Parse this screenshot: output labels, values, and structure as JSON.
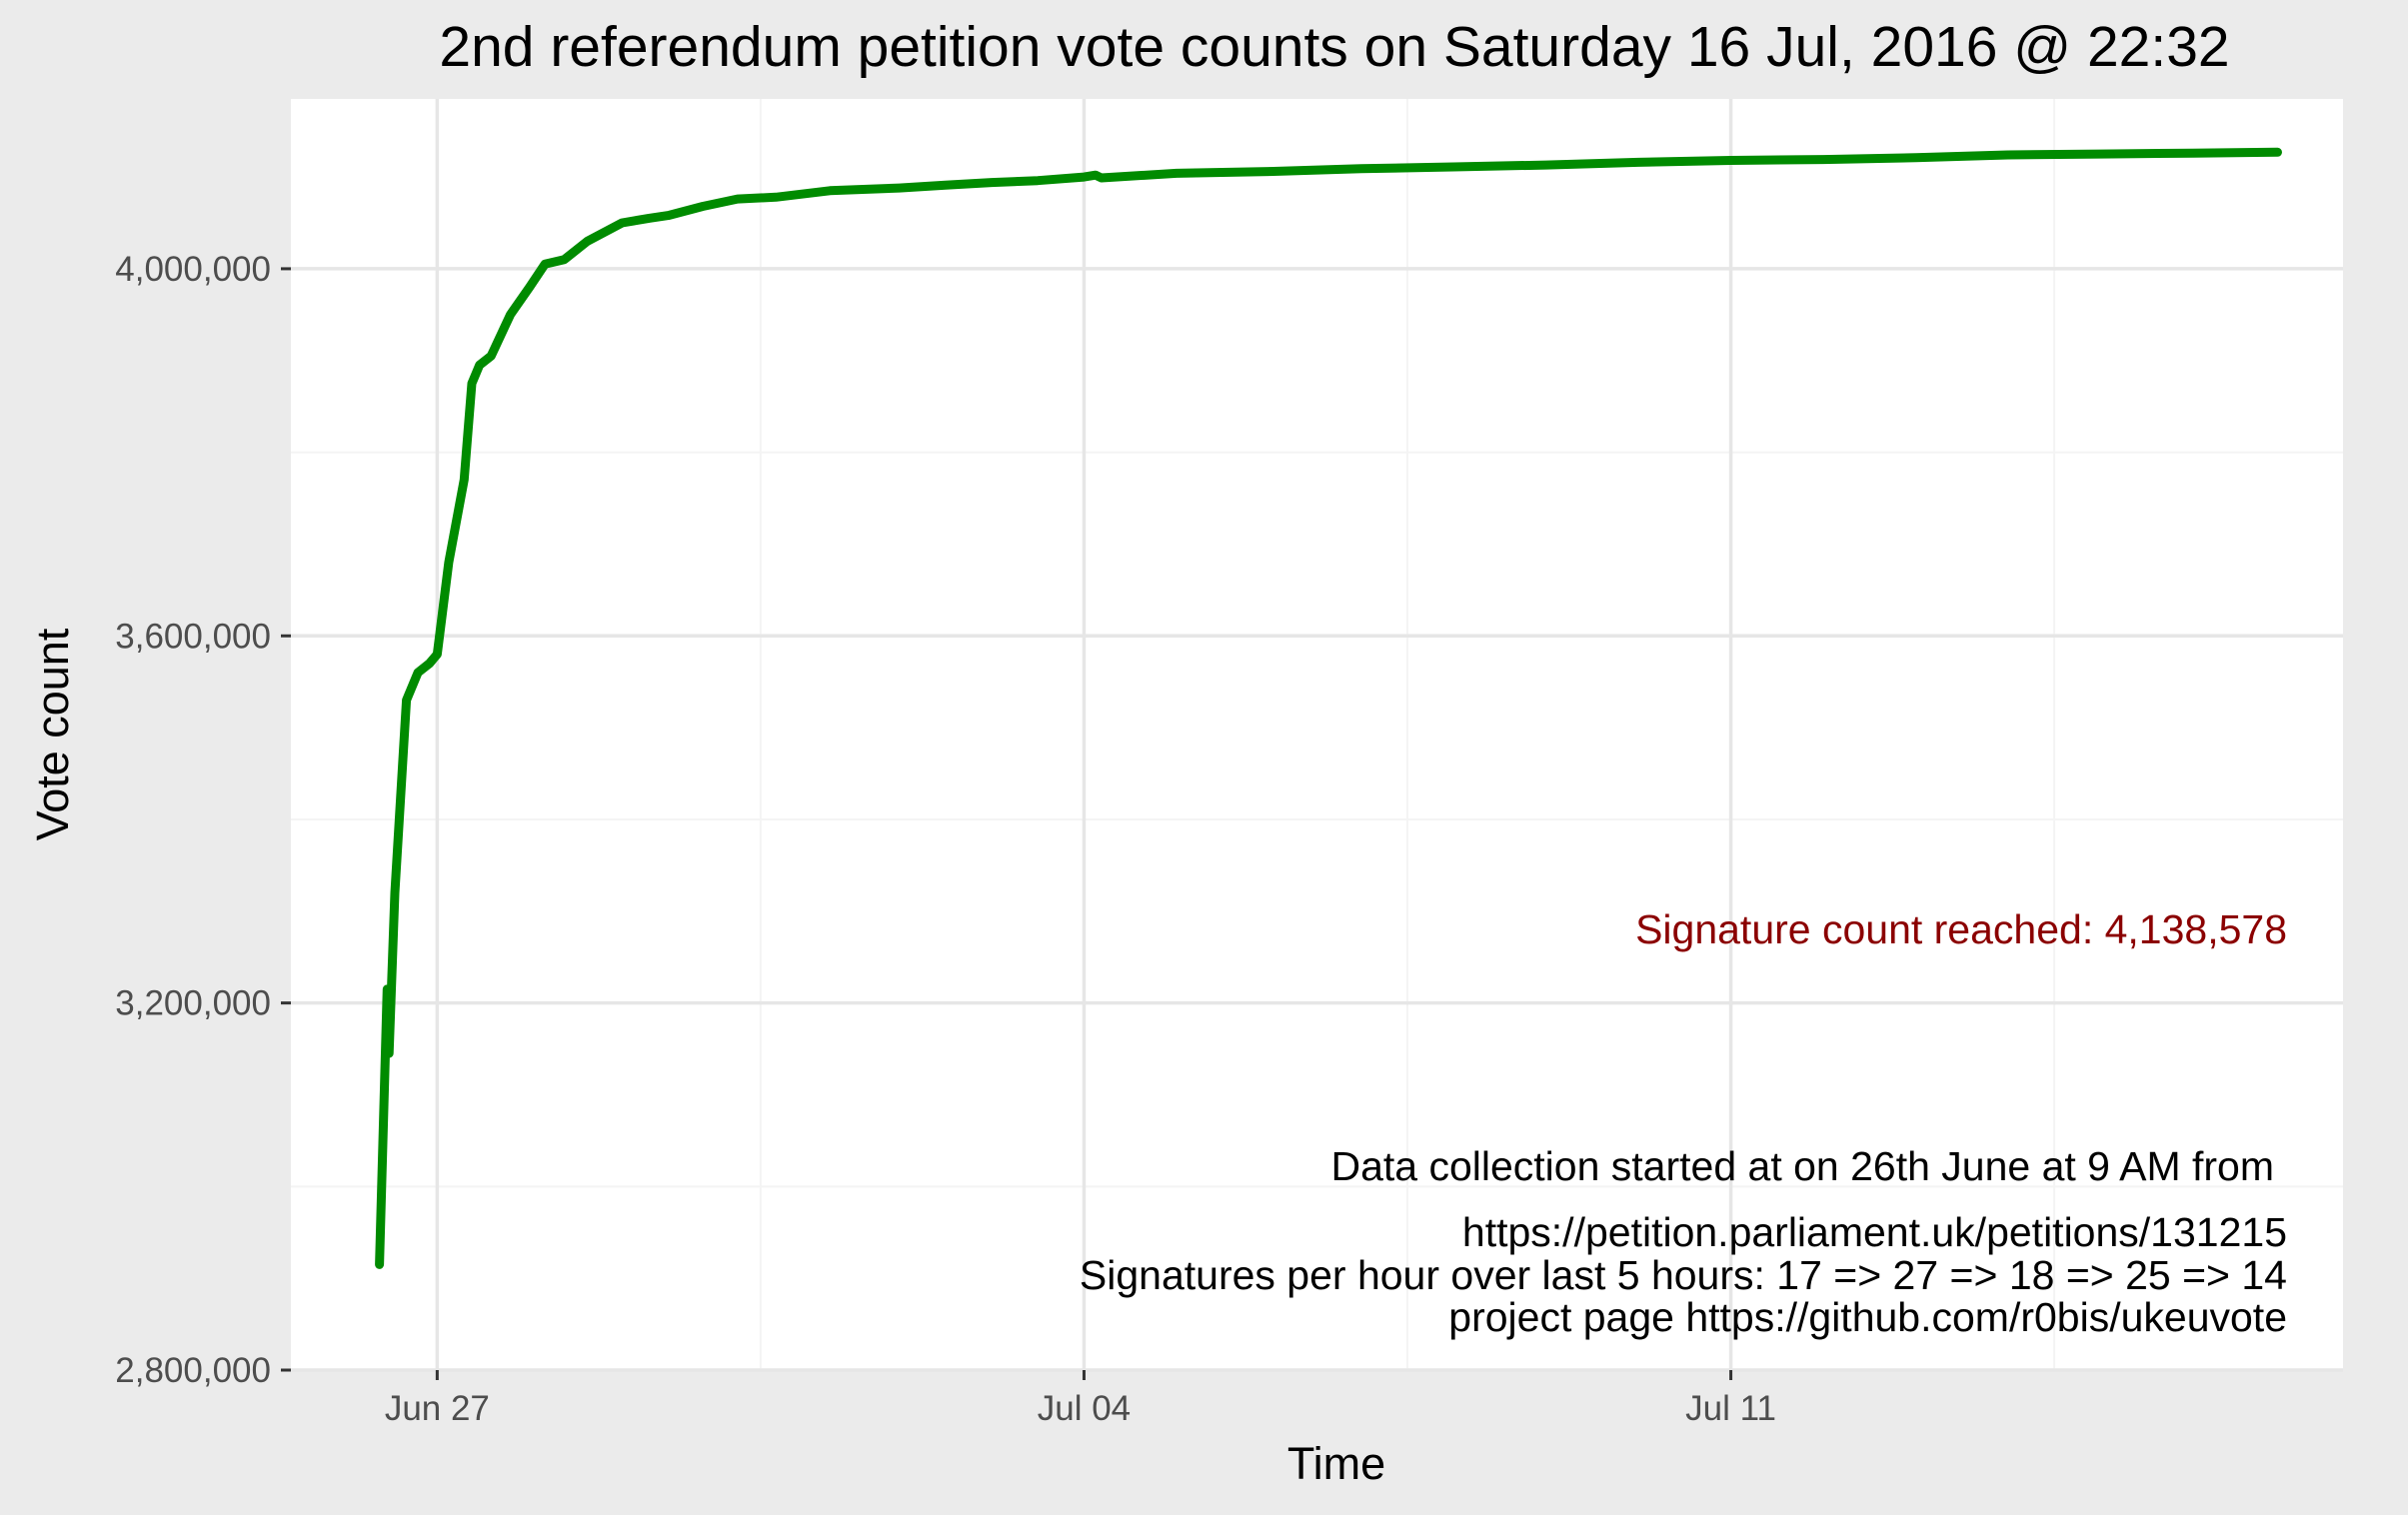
{
  "chart_data": {
    "type": "line",
    "title": "2nd referendum petition vote counts on Saturday 16 Jul, 2016 @ 22:32",
    "xlabel": "Time",
    "ylabel": "Vote count",
    "x_ticks": [
      "Jun 27",
      "Jul 04",
      "Jul 11"
    ],
    "y_ticks": [
      "2,800,000",
      "3,200,000",
      "3,600,000",
      "4,000,000"
    ],
    "y_tick_values": [
      2800000,
      3200000,
      3600000,
      4000000
    ],
    "ylim": [
      2800000,
      4185000
    ],
    "xlim": [
      "2016-06-25T10:00",
      "2016-07-17T15:00"
    ],
    "grid": true,
    "line_color": "#008b00",
    "series": [
      {
        "values": [
          {
            "x": "2016-06-26T09:00",
            "y": 2915000
          },
          {
            "x": "2016-06-26T11:00",
            "y": 3215000
          },
          {
            "x": "2016-06-26T11:30",
            "y": 3145000
          },
          {
            "x": "2016-06-26T13:00",
            "y": 3320000
          },
          {
            "x": "2016-06-26T16:00",
            "y": 3530000
          },
          {
            "x": "2016-06-26T19:00",
            "y": 3560000
          },
          {
            "x": "2016-06-26T22:00",
            "y": 3570000
          },
          {
            "x": "2016-06-27T00:00",
            "y": 3580000
          },
          {
            "x": "2016-06-27T03:00",
            "y": 3680000
          },
          {
            "x": "2016-06-27T07:00",
            "y": 3770000
          },
          {
            "x": "2016-06-27T09:00",
            "y": 3875000
          },
          {
            "x": "2016-06-27T11:00",
            "y": 3895000
          },
          {
            "x": "2016-06-27T14:00",
            "y": 3905000
          },
          {
            "x": "2016-06-27T19:00",
            "y": 3950000
          },
          {
            "x": "2016-06-28T00:00",
            "y": 3980000
          },
          {
            "x": "2016-06-28T04:00",
            "y": 4005000
          },
          {
            "x": "2016-06-28T09:00",
            "y": 4010000
          },
          {
            "x": "2016-06-28T15:00",
            "y": 4030000
          },
          {
            "x": "2016-06-29T00:00",
            "y": 4050000
          },
          {
            "x": "2016-06-29T07:00",
            "y": 4055000
          },
          {
            "x": "2016-06-29T12:00",
            "y": 4058000
          },
          {
            "x": "2016-06-29T21:00",
            "y": 4068000
          },
          {
            "x": "2016-06-30T06:00",
            "y": 4076000
          },
          {
            "x": "2016-06-30T16:00",
            "y": 4078000
          },
          {
            "x": "2016-07-01T06:00",
            "y": 4085000
          },
          {
            "x": "2016-07-02T00:00",
            "y": 4088000
          },
          {
            "x": "2016-07-02T12:00",
            "y": 4091000
          },
          {
            "x": "2016-07-03T00:00",
            "y": 4094000
          },
          {
            "x": "2016-07-03T12:00",
            "y": 4096000
          },
          {
            "x": "2016-07-04T00:00",
            "y": 4100000
          },
          {
            "x": "2016-07-04T03:00",
            "y": 4102000
          },
          {
            "x": "2016-07-04T04:30",
            "y": 4099000
          },
          {
            "x": "2016-07-05T00:00",
            "y": 4104000
          },
          {
            "x": "2016-07-06T00:00",
            "y": 4106000
          },
          {
            "x": "2016-07-07T00:00",
            "y": 4109000
          },
          {
            "x": "2016-07-08T00:00",
            "y": 4111000
          },
          {
            "x": "2016-07-09T00:00",
            "y": 4113000
          },
          {
            "x": "2016-07-10T00:00",
            "y": 4116000
          },
          {
            "x": "2016-07-11T00:00",
            "y": 4118000
          },
          {
            "x": "2016-07-12T00:00",
            "y": 4119000
          },
          {
            "x": "2016-07-13T00:00",
            "y": 4121000
          },
          {
            "x": "2016-07-14T00:00",
            "y": 4124000
          },
          {
            "x": "2016-07-15T00:00",
            "y": 4125000
          },
          {
            "x": "2016-07-16T00:00",
            "y": 4126000
          },
          {
            "x": "2016-07-16T22:00",
            "y": 4127000
          }
        ]
      }
    ],
    "annotations": {
      "signature": "Signature count reached:  4,138,578",
      "line1": "Data collection started at on 26th June at 9 AM from",
      "line2": "https://petition.parliament.uk/petitions/131215",
      "line3": "Signatures per hour over last 5 hours:  17 => 27 => 18 => 25 => 14",
      "line4": "project page https://github.com/r0bis/ukeuvote"
    }
  }
}
